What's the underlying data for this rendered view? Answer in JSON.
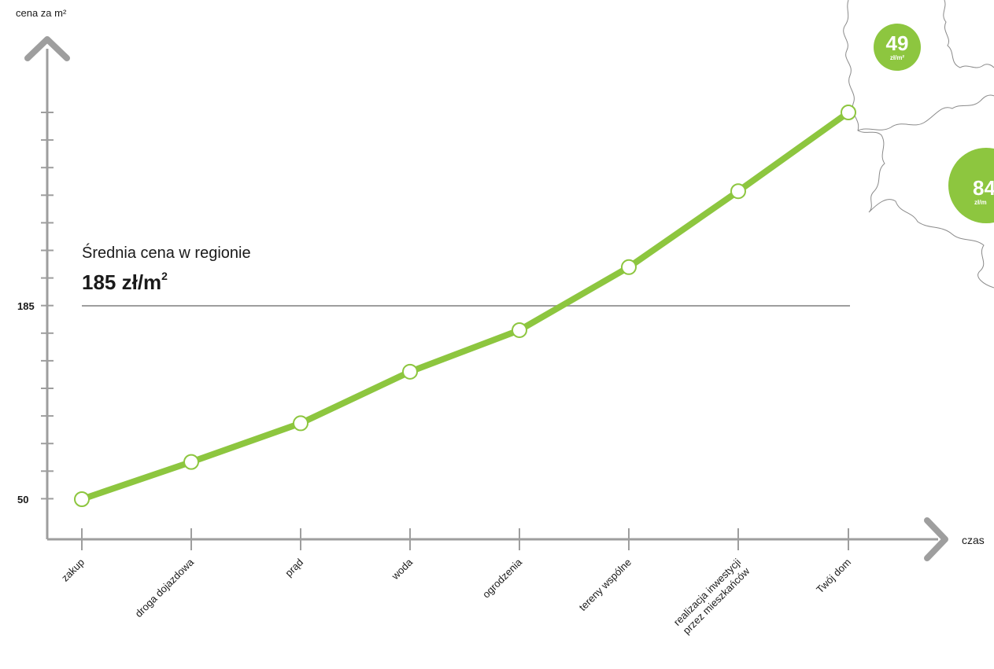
{
  "chart_data": {
    "type": "line",
    "title": "",
    "ylabel": "cena za m²",
    "xlabel": "czas",
    "categories": [
      "zakup",
      "droga dojazdowa",
      "prąd",
      "woda",
      "ogrodzenia",
      "tereny wspólne",
      "realizacja inwestycji\nprzez mieszkańców",
      "Twój dom"
    ],
    "series": [
      {
        "values": [
          50,
          76,
          103,
          139,
          168,
          212,
          265,
          320
        ]
      }
    ],
    "y_ticks": [
      {
        "value": 50,
        "label": "50"
      },
      {
        "value": 185,
        "label": "185"
      }
    ],
    "reference_line": {
      "value": 185,
      "label": "Średnia cena w regionie",
      "value_label": "185 zł/m",
      "value_label_sup": "2"
    },
    "ylim": [
      20,
      360
    ],
    "grid": false,
    "colors": {
      "line": "#8dc63f",
      "axis": "#9e9e9e",
      "reference": "#9e9e9e",
      "marker_fill": "#ffffff",
      "text": "#1a1a1a",
      "map_outline": "#8a8a8a"
    }
  },
  "map_badges": [
    {
      "value": "49",
      "unit": "zł/m²",
      "color": "#8dc63f"
    },
    {
      "value": "84",
      "unit": "zł/m",
      "color": "#8dc63f"
    }
  ]
}
